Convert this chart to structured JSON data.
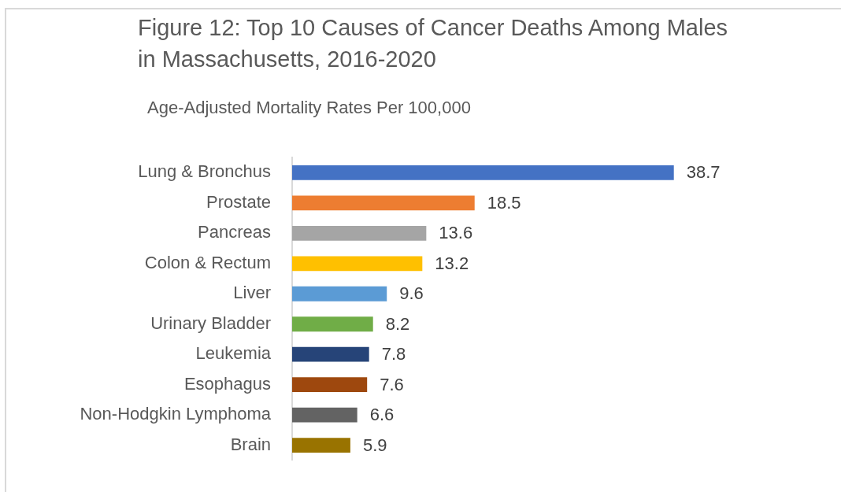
{
  "chart_data": {
    "type": "bar",
    "title": "Figure 12: Top 10 Causes of Cancer Deaths Among Males in Massachusetts, 2016-2020",
    "subtitle": "Age-Adjusted Mortality Rates Per 100,000",
    "categories": [
      "Lung & Bronchus",
      "Prostate",
      "Pancreas",
      "Colon & Rectum",
      "Liver",
      "Urinary Bladder",
      "Leukemia",
      "Esophagus",
      "Non-Hodgkin Lymphoma",
      "Brain"
    ],
    "values": [
      38.7,
      18.5,
      13.6,
      13.2,
      9.6,
      8.2,
      7.8,
      7.6,
      6.6,
      5.9
    ],
    "colors": [
      "#4472c4",
      "#ed7d31",
      "#a5a5a5",
      "#ffc000",
      "#5b9bd5",
      "#70ad47",
      "#264478",
      "#9e480e",
      "#636363",
      "#997300"
    ],
    "orientation": "horizontal",
    "data_labels": true,
    "tick_labels": "y",
    "grid": false,
    "legend": false
  }
}
